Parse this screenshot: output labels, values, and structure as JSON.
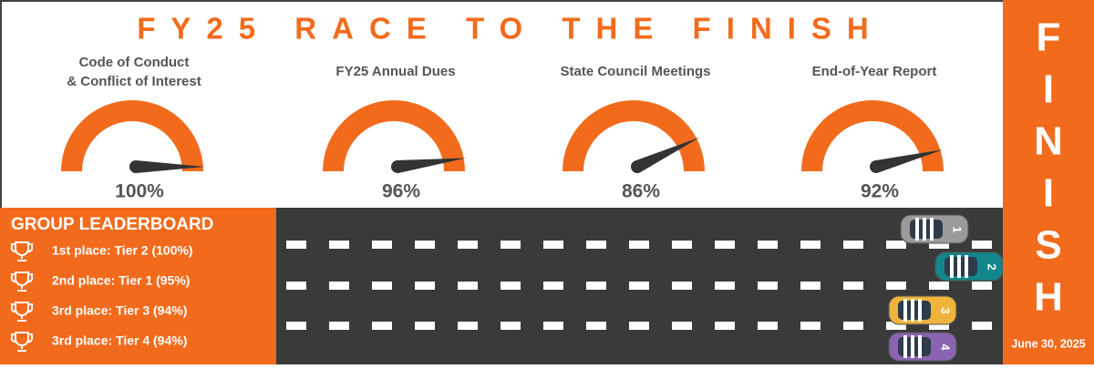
{
  "title": "FY25 RACE TO THE FINISH",
  "gauge_range": [
    0,
    100
  ],
  "gauges": [
    {
      "label": [
        "Code of Conduct",
        "& Conflict of Interest"
      ],
      "value": 100,
      "value_label": "100%"
    },
    {
      "label": [
        "FY25 Annual Dues"
      ],
      "value": 96,
      "value_label": "96%"
    },
    {
      "label": [
        "State Council Meetings"
      ],
      "value": 86,
      "value_label": "86%"
    },
    {
      "label": [
        "End-of-Year Report"
      ],
      "value": 92,
      "value_label": "92%"
    }
  ],
  "leaderboard": {
    "title": "GROUP LEADERBOARD",
    "entries": [
      "1st place: Tier 2 (100%)",
      "2nd place: Tier 1 (95%)",
      "3rd place: Tier 3 (94%)",
      "3rd place: Tier 4 (94%)"
    ]
  },
  "cars": [
    "1",
    "2",
    "3",
    "4"
  ],
  "finish": {
    "letters": [
      "F",
      "I",
      "N",
      "I",
      "S",
      "H"
    ],
    "date": "June 30, 2025"
  }
}
